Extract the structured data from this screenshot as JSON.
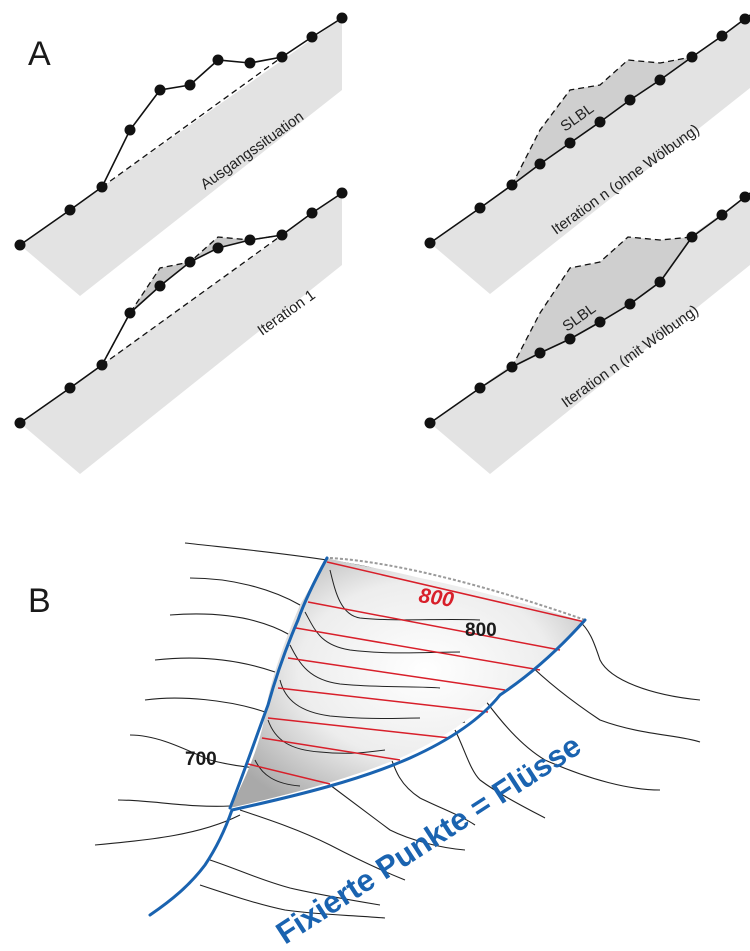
{
  "panel_a": {
    "label": "A",
    "slopes": [
      {
        "id": "ausgang",
        "label": "Ausgangssituation"
      },
      {
        "id": "iter1",
        "label": "Iteration 1"
      },
      {
        "id": "itern_ohne",
        "label": "Iteration n (ohne Wölbung)",
        "slbl": "SLBL"
      },
      {
        "id": "itern_mit",
        "label": "Iteration n (mit Wölbung)",
        "slbl": "SLBL"
      }
    ]
  },
  "panel_b": {
    "label": "B",
    "contour_red": "800",
    "contour_black_upper": "800",
    "contour_black_lower": "700",
    "fixed_points_label": "Fixierte Punkte = Flüsse"
  },
  "colors": {
    "slope_fill": "#e3e3e3",
    "slbl_fill": "#cfcfcf",
    "river_blue": "#1a63b0",
    "contour_red": "#d81f2a"
  }
}
